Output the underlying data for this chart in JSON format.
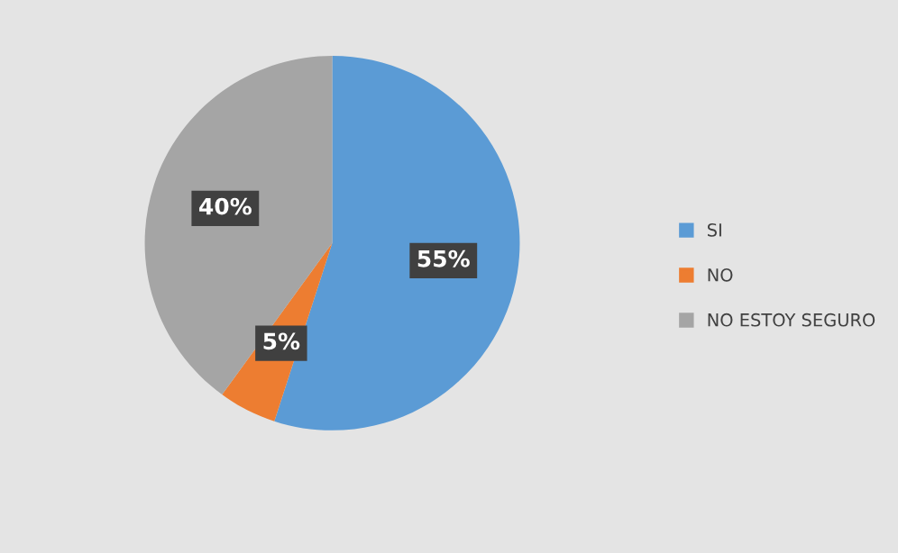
{
  "chart_data": {
    "type": "pie",
    "categories": [
      "SI",
      "NO",
      "NO ESTOY SEGURO"
    ],
    "values": [
      55,
      5,
      40
    ],
    "colors": [
      "#5b9bd5",
      "#ed7d31",
      "#a5a5a5"
    ],
    "value_labels": [
      "55%",
      "5%",
      "40%"
    ],
    "legend": "right"
  }
}
